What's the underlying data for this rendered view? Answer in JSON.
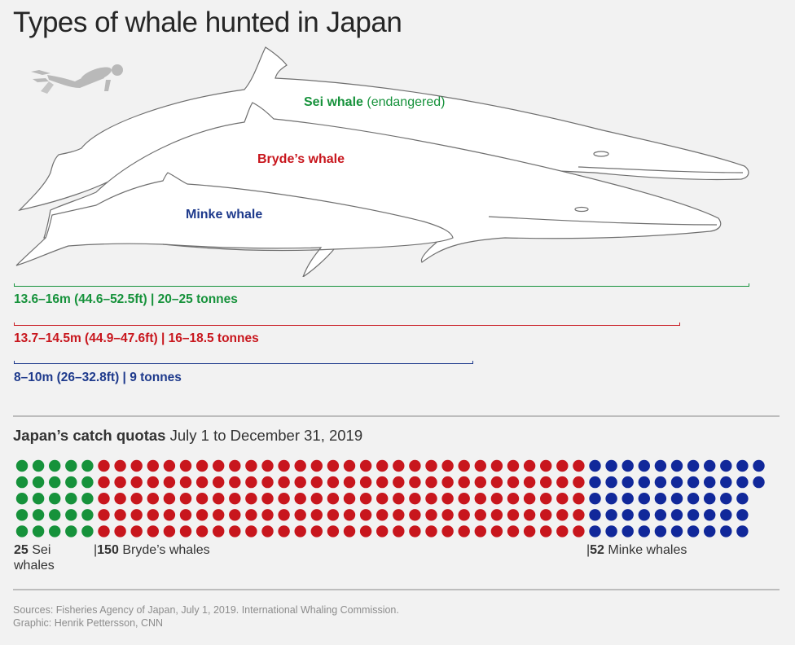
{
  "title": "Types of whale hunted in Japan",
  "whales": [
    {
      "name": "Sei whale",
      "extra": "(endangered)",
      "color": "#16923b",
      "range_text": "13.6–16m (44.6–52.5ft) | 20–25 tonnes",
      "length_max_m": 16
    },
    {
      "name": "Bryde’s whale",
      "extra": "",
      "color": "#c8161d",
      "range_text": "13.7–14.5m (44.9–47.6ft) | 16–18.5 tonnes",
      "length_max_m": 14.5
    },
    {
      "name": "Minke whale",
      "extra": "",
      "color": "#1e3a8c",
      "range_text": "8–10m (26–32.8ft) | 9 tonnes",
      "length_max_m": 10
    }
  ],
  "quota": {
    "heading_bold": "Japan’s catch quotas",
    "heading_rest": "July 1 to December 31, 2019"
  },
  "chart_data": {
    "type": "dot-matrix",
    "series": [
      {
        "name": "Sei whales",
        "value": 25,
        "color": "#16923b"
      },
      {
        "name": "Bryde’s whales",
        "value": 150,
        "color": "#c8161d"
      },
      {
        "name": "Minke whales",
        "value": 52,
        "color": "#11289a"
      }
    ],
    "rows": 5
  },
  "labels": {
    "sei_num": "25",
    "sei_line1": "Sei",
    "sei_line2": "whales",
    "bryde_prefix": "|",
    "bryde_num": "150",
    "bryde_text": "Bryde’s whales",
    "minke_prefix": "|",
    "minke_num": "52",
    "minke_text": "Minke whales"
  },
  "sources": {
    "line1": "Sources: Fisheries Agency of Japan, July 1, 2019. International Whaling Commission.",
    "line2": "Graphic: Henrik Pettersson, CNN"
  }
}
